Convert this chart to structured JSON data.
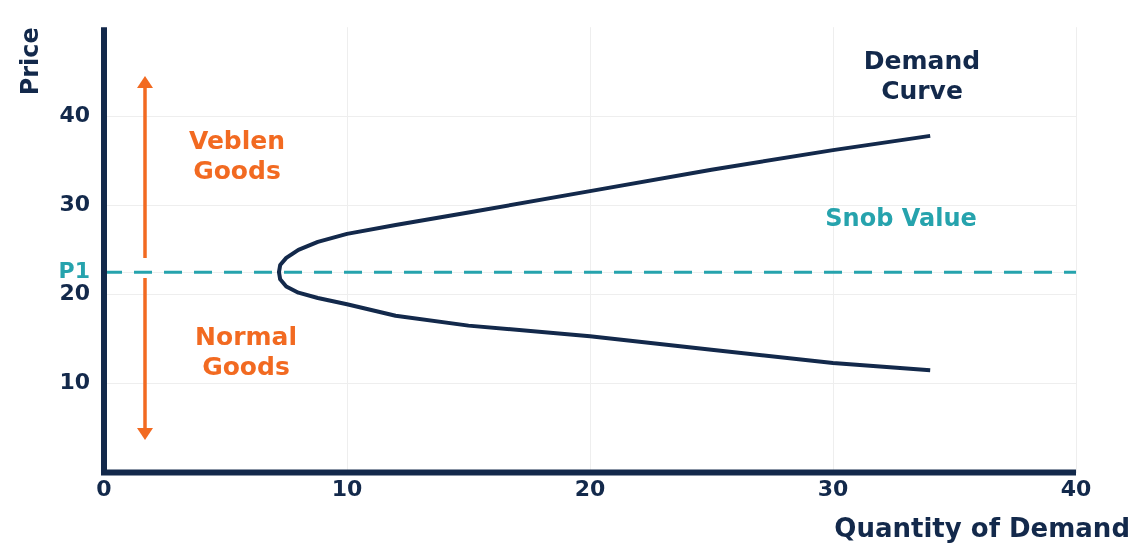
{
  "chart_data": {
    "type": "line",
    "xlabel": "Quantity of Demand",
    "ylabel": "Price",
    "xlim": [
      0,
      40
    ],
    "ylim": [
      0,
      50
    ],
    "xticks": [
      0,
      10,
      20,
      30,
      40
    ],
    "yticks": [
      10,
      20,
      {
        "value": 22.5,
        "label": "P1"
      },
      30,
      40
    ],
    "grid": true,
    "legend": false,
    "marker": "none",
    "line_style": "solid",
    "series": [
      {
        "color": "#13294b",
        "x": [
          34,
          30,
          25,
          20,
          15,
          12,
          10,
          8.8,
          8,
          7.5,
          7.25,
          7.2,
          7.25,
          7.5,
          8,
          8.8,
          10,
          12,
          15,
          20,
          25,
          30,
          34
        ],
        "values": [
          37.8,
          36.2,
          34.0,
          31.6,
          29.2,
          27.8,
          26.8,
          25.9,
          25.0,
          24.1,
          23.3,
          22.5,
          21.7,
          20.9,
          20.2,
          19.6,
          18.9,
          17.6,
          16.5,
          15.3,
          13.8,
          12.3,
          11.5
        ]
      }
    ],
    "ref_lines": [
      {
        "axis": "y",
        "value": 22.5,
        "label": "Snob Value",
        "color": "#26a3ad",
        "line_style": "dashed"
      }
    ],
    "annotations": [
      "Veblen Goods",
      "Normal Goods",
      "Demand Curve"
    ]
  }
}
